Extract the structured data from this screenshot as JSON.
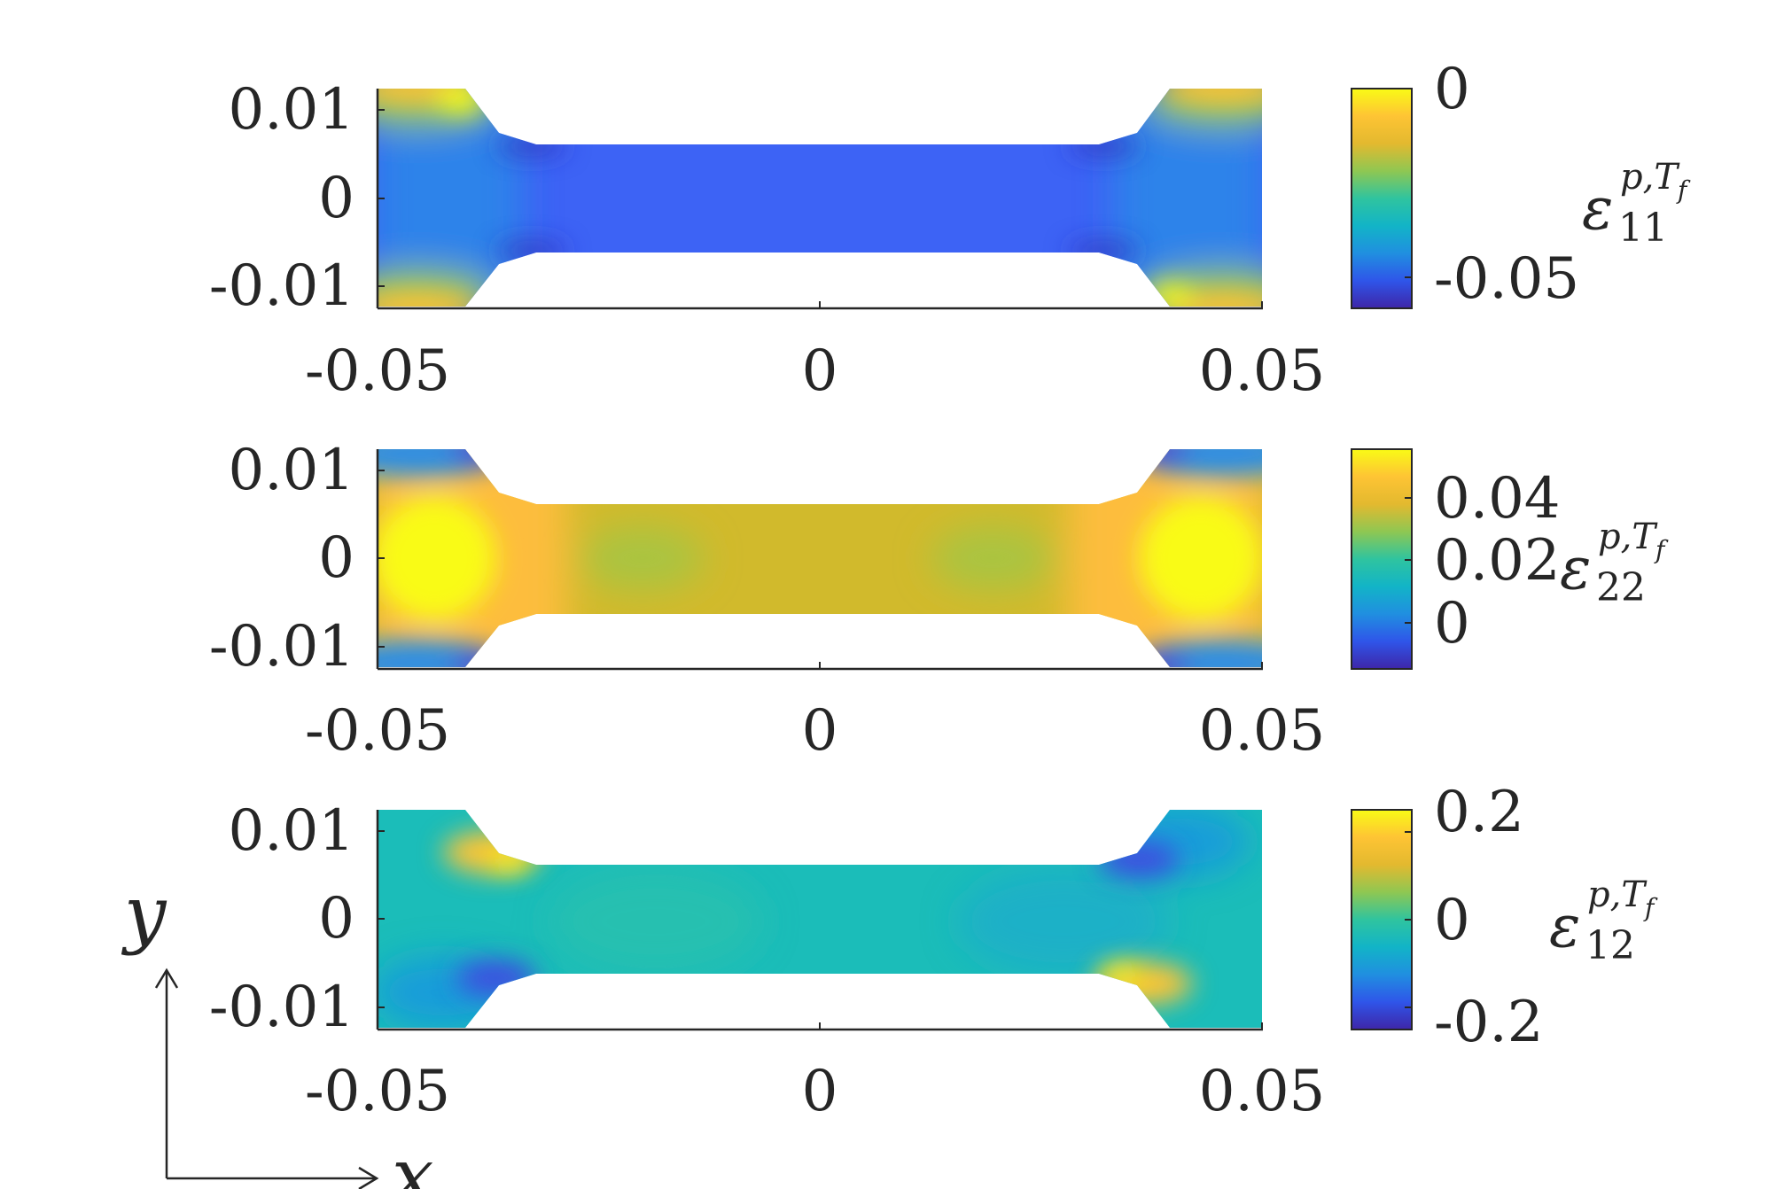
{
  "chart_data": [
    {
      "type": "heatmap",
      "field": "ε11",
      "xlim": [
        -0.05,
        0.05
      ],
      "ylim": [
        -0.0125,
        0.0125
      ],
      "x_ticks": [
        "-0.05",
        "0",
        "0.05"
      ],
      "y_ticks": [
        "0.01",
        "0",
        "-0.01"
      ],
      "colorbar": {
        "range": [
          -0.06,
          0.0
        ],
        "ticks": [
          "0",
          "-0.05"
        ]
      },
      "colorbar_label": {
        "base": "ε",
        "sup": "p,T",
        "supsub": "f",
        "sub": "11"
      },
      "summary": {
        "gauge_value": -0.052,
        "grip_edge_value": -0.002
      }
    },
    {
      "type": "heatmap",
      "field": "ε22",
      "xlim": [
        -0.05,
        0.05
      ],
      "ylim": [
        -0.0125,
        0.0125
      ],
      "x_ticks": [
        "-0.05",
        "0",
        "0.05"
      ],
      "y_ticks": [
        "0.01",
        "0",
        "-0.01"
      ],
      "colorbar": {
        "range": [
          -0.01,
          0.05
        ],
        "ticks": [
          "0.04",
          "0.02",
          "0"
        ]
      },
      "colorbar_label": {
        "base": "ε",
        "sup": "p,T",
        "supsub": "f",
        "sub": "22"
      },
      "summary": {
        "gauge_value": 0.037,
        "grip_center_value": 0.05,
        "grip_corner_value": -0.005
      }
    },
    {
      "type": "heatmap",
      "field": "ε12",
      "xlim": [
        -0.05,
        0.05
      ],
      "ylim": [
        -0.0125,
        0.0125
      ],
      "x_ticks": [
        "-0.05",
        "0",
        "0.05"
      ],
      "y_ticks": [
        "0.01",
        "0",
        "-0.01"
      ],
      "colorbar": {
        "range": [
          -0.25,
          0.25
        ],
        "ticks": [
          "0.2",
          "0",
          "-0.2"
        ]
      },
      "colorbar_label": {
        "base": "ε",
        "sup": "p,T",
        "supsub": "f",
        "sub": "12"
      },
      "summary": {
        "gauge_value": 0.0,
        "fillet_peak_value": 0.18,
        "fillet_trough_value": -0.15
      }
    }
  ],
  "axes_triad": {
    "x_label": "x",
    "y_label": "y"
  },
  "colormap": [
    "#3e26a8",
    "#2f55e9",
    "#208fe0",
    "#12b4c7",
    "#2fc49f",
    "#8fc752",
    "#e3b92f",
    "#fec434",
    "#f9fb15"
  ]
}
